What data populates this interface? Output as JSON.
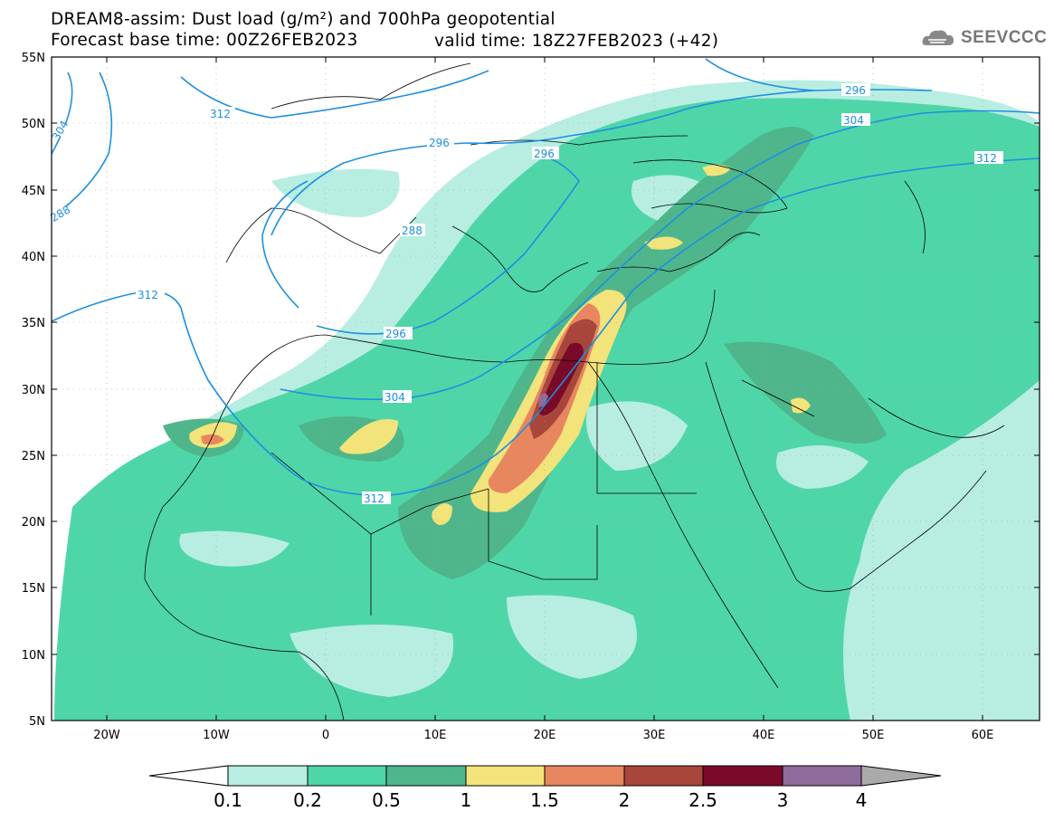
{
  "title": {
    "line1": "DREAM8-assim: Dust load (g/m²) and 700hPa geopotential",
    "line2_left": "Forecast base time: 00Z26FEB2023",
    "line2_right": "valid time: 18Z27FEB2023 (+42)"
  },
  "logo": {
    "text": "SEEVCCC",
    "icon": "cloud-icon"
  },
  "axes": {
    "lat_labels": [
      "55N",
      "50N",
      "45N",
      "40N",
      "35N",
      "30N",
      "25N",
      "20N",
      "15N",
      "10N",
      "5N"
    ],
    "lon_labels": [
      "20W",
      "10W",
      "0",
      "10E",
      "20E",
      "30E",
      "40E",
      "50E",
      "60E"
    ]
  },
  "contours": {
    "labels": [
      "312",
      "296",
      "304",
      "288",
      "296",
      "296",
      "312",
      "296",
      "304",
      "312",
      "304",
      "296",
      "312"
    ]
  },
  "colorbar": {
    "levels": [
      "0.1",
      "0.2",
      "0.5",
      "1",
      "1.5",
      "2",
      "2.5",
      "3",
      "4"
    ],
    "colors": [
      "#ffffff",
      "#b8ede2",
      "#4fd6a8",
      "#4fb68c",
      "#f2e47a",
      "#e8875f",
      "#a8463c",
      "#7a0a2a",
      "#8e6c9c",
      "#aaaaaa"
    ]
  },
  "colors": {
    "contour": "#1e8fe0",
    "border": "#000000",
    "dust_low": "#b8ede2",
    "dust_02": "#4fd6a8",
    "dust_05": "#4fb68c",
    "dust_1": "#f2e47a",
    "dust_15": "#e8875f",
    "dust_2": "#a8463c",
    "dust_25": "#7a0a2a",
    "dust_3": "#8e6c9c"
  }
}
